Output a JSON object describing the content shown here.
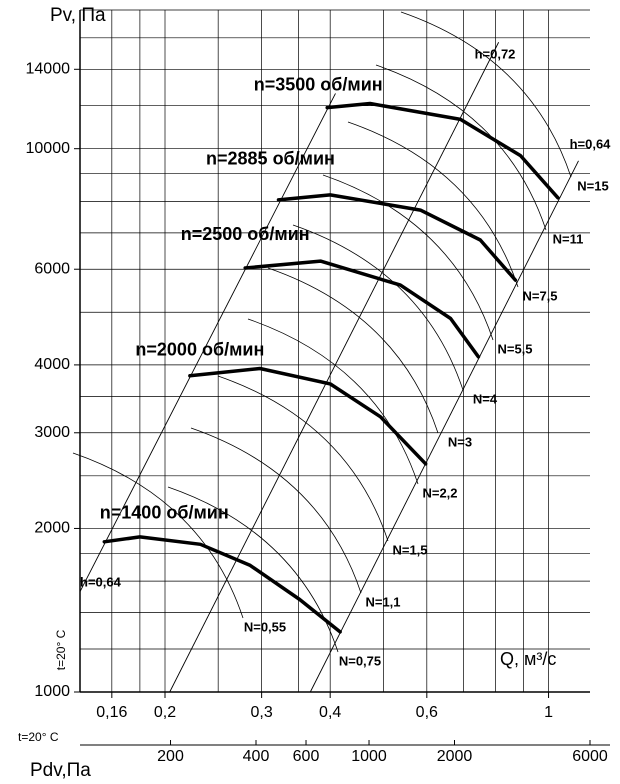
{
  "chart_data": {
    "type": "line",
    "y_label": "Pv, Па",
    "x_label": "Q, м³/с",
    "x2_label": "Pdv,Па",
    "notes": [
      "t=20° C",
      "t=20° C"
    ],
    "log_x": true,
    "log_y": true,
    "grid": true,
    "color": "#000000",
    "xlim": [
      0.14,
      1.19
    ],
    "ylim": [
      1000,
      18000
    ],
    "x2lim": [
      96,
      6000
    ],
    "xticks": [
      {
        "value": 0.16,
        "label": "0,16"
      },
      {
        "value": 0.2,
        "label": "0,2"
      },
      {
        "value": 0.3,
        "label": "0,3"
      },
      {
        "value": 0.4,
        "label": "0,4"
      },
      {
        "value": 0.6,
        "label": "0,6"
      },
      1
    ],
    "yticks": [
      1000,
      2000,
      3000,
      4000,
      6000,
      10000,
      14000
    ],
    "x2ticks": [
      200,
      400,
      600,
      1000,
      2000,
      6000
    ],
    "xgrid": [
      0.16,
      0.18,
      0.2,
      0.25,
      0.3,
      0.35,
      0.4,
      0.5,
      0.6,
      0.7,
      0.8,
      0.9,
      1
    ],
    "ygrid": [
      1000,
      1200,
      1400,
      1600,
      1800,
      2000,
      2500,
      3000,
      3500,
      4000,
      5000,
      6000,
      7000,
      8000,
      9000,
      10000,
      12000,
      14000,
      16000,
      18000
    ],
    "series": [
      {
        "name": "n=1400 об/мин",
        "x": [
          0.155,
          0.18,
          0.232,
          0.286,
          0.352,
          0.417
        ],
        "values": [
          1890,
          1930,
          1870,
          1710,
          1480,
          1290
        ]
      },
      {
        "name": "n=2000 об/мин",
        "x": [
          0.222,
          0.298,
          0.4,
          0.494,
          0.597
        ],
        "values": [
          3820,
          3940,
          3690,
          3210,
          2630
        ]
      },
      {
        "name": "n=2500 об/мин",
        "x": [
          0.28,
          0.384,
          0.537,
          0.663,
          0.745
        ],
        "values": [
          6030,
          6210,
          5610,
          4870,
          4140
        ]
      },
      {
        "name": "n=2885 об/мин",
        "x": [
          0.322,
          0.4,
          0.584,
          0.751,
          0.87
        ],
        "values": [
          8050,
          8220,
          7710,
          6790,
          5730
        ]
      },
      {
        "name": "n=3500 об/мин",
        "x": [
          0.395,
          0.473,
          0.691,
          0.889,
          1.04
        ],
        "values": [
          11900,
          12110,
          11320,
          9710,
          8120
        ]
      }
    ],
    "efficiency_lines": [
      {
        "name": "h=0,64",
        "x": [
          0.14,
          0.409
        ],
        "values": [
          1530,
          12640
        ]
      },
      {
        "name": "h=0,72",
        "x": [
          0.204,
          0.811
        ],
        "values": [
          1000,
          15700
        ]
      },
      {
        "name": "h=0,64",
        "x": [
          0.368,
          1.134
        ],
        "values": [
          1000,
          9500
        ]
      }
    ],
    "power_labels": [
      "N=0,55",
      "N=0,75",
      "N=1,1",
      "N=1,5",
      "N=2,2",
      "N=3",
      "N=4",
      "N=5,5",
      "N=7,5",
      "N=11",
      "N=15"
    ]
  }
}
